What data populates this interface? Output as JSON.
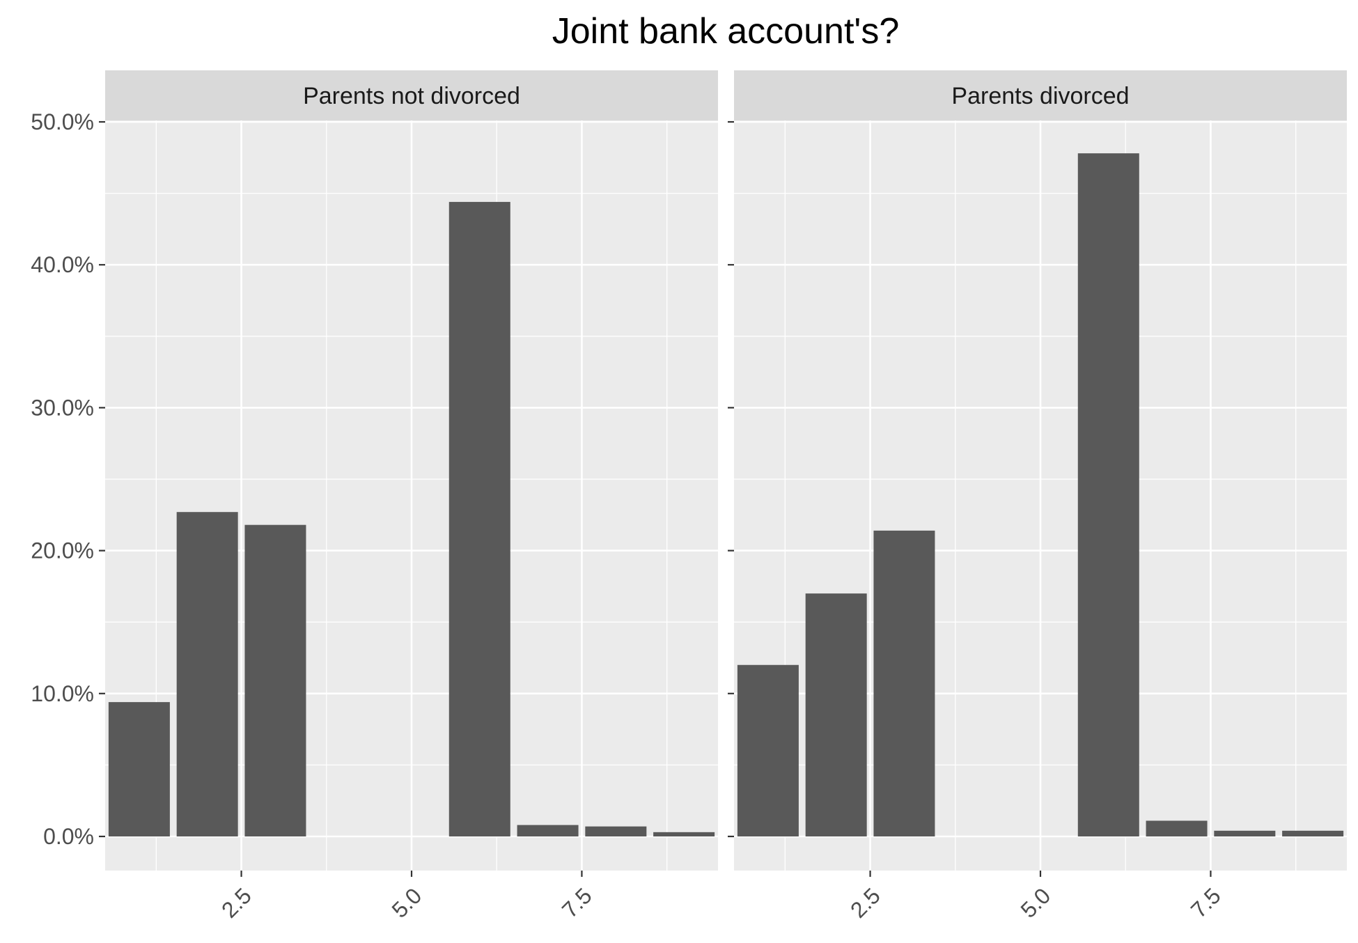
{
  "chart_data": {
    "type": "bar",
    "title": "Joint bank account's?",
    "xlabel": "",
    "ylabel": "",
    "xlim": [
      0.5,
      9.5
    ],
    "ylim": [
      0,
      0.5
    ],
    "x_ticks": [
      2.5,
      5.0,
      7.5
    ],
    "x_tick_labels": [
      "2.5",
      "5.0",
      "7.5"
    ],
    "y_ticks": [
      0,
      0.1,
      0.2,
      0.3,
      0.4,
      0.5
    ],
    "y_tick_labels": [
      "0.0%",
      "10.0%",
      "20.0%",
      "30.0%",
      "40.0%",
      "50.0%"
    ],
    "grid": true,
    "facets": [
      {
        "label": "Parents not divorced",
        "x": [
          1,
          2,
          3,
          6,
          7,
          8,
          9
        ],
        "values": [
          0.094,
          0.227,
          0.218,
          0.444,
          0.008,
          0.007,
          0.003
        ]
      },
      {
        "label": "Parents divorced",
        "x": [
          1,
          2,
          3,
          6,
          7,
          8,
          9
        ],
        "values": [
          0.12,
          0.17,
          0.214,
          0.478,
          0.011,
          0.004,
          0.004
        ]
      }
    ],
    "colors": {
      "bar": "#595959",
      "panel_bg": "#EBEBEB",
      "strip_bg": "#D9D9D9",
      "grid": "#FFFFFF",
      "axis_text": "#4D4D4D",
      "title": "#000000"
    }
  }
}
